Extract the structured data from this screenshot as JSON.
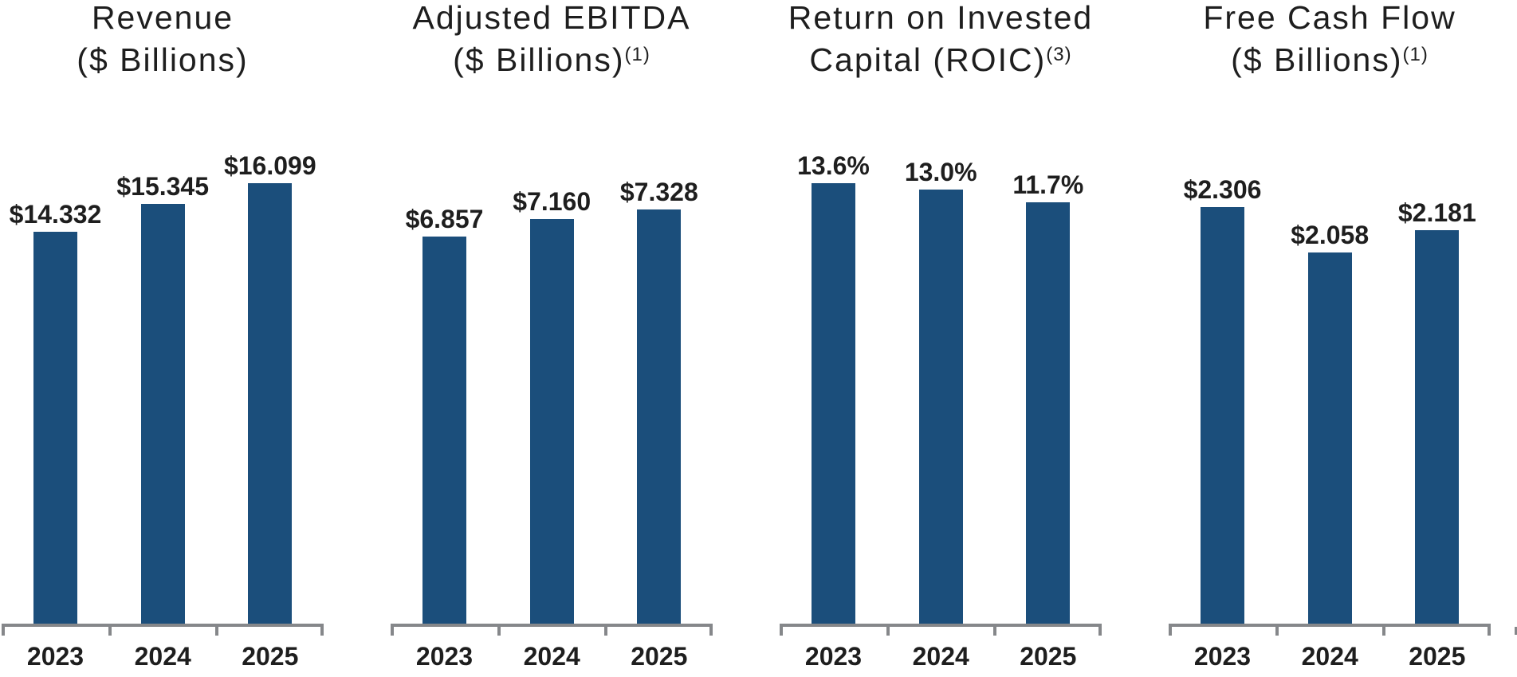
{
  "colors": {
    "bar": "#1B4E7B",
    "axis": "#85878A",
    "text": "#1E1E1E",
    "background": "#FFFFFF"
  },
  "chart_data": [
    {
      "type": "bar",
      "title": "Revenue ($ Billions)",
      "title_line1": "Revenue",
      "title_line2": "($ Billions)",
      "title_sup": "",
      "categories": [
        "2023",
        "2024",
        "2025"
      ],
      "values": [
        14.332,
        15.345,
        16.099
      ],
      "labels": [
        "$14.332",
        "$15.345",
        "$16.099"
      ],
      "unit": "USD billions",
      "legend": "none",
      "grid": false
    },
    {
      "type": "bar",
      "title": "Adjusted EBITDA ($ Billions)(1)",
      "title_line1": "Adjusted EBITDA",
      "title_line2": "($ Billions)",
      "title_sup": "(1)",
      "categories": [
        "2023",
        "2024",
        "2025"
      ],
      "values": [
        6.857,
        7.16,
        7.328
      ],
      "labels": [
        "$6.857",
        "$7.160",
        "$7.328"
      ],
      "unit": "USD billions",
      "legend": "none",
      "grid": false
    },
    {
      "type": "bar",
      "title": "Return on Invested Capital (ROIC)(3)",
      "title_line1": "Return on Invested",
      "title_line2": "Capital (ROIC)",
      "title_sup": "(3)",
      "categories": [
        "2023",
        "2024",
        "2025"
      ],
      "values": [
        13.6,
        13.0,
        11.7
      ],
      "labels": [
        "13.6%",
        "13.0%",
        "11.7%"
      ],
      "unit": "percent",
      "legend": "none",
      "grid": false
    },
    {
      "type": "bar",
      "title": "Free Cash Flow ($ Billions)(1)",
      "title_line1": "Free Cash Flow",
      "title_line2": "($ Billions)",
      "title_sup": "(1)",
      "categories": [
        "2023",
        "2024",
        "2025"
      ],
      "values": [
        2.306,
        2.058,
        2.181
      ],
      "labels": [
        "$2.306",
        "$2.058",
        "$2.181"
      ],
      "unit": "USD billions",
      "legend": "none",
      "grid": false
    }
  ]
}
